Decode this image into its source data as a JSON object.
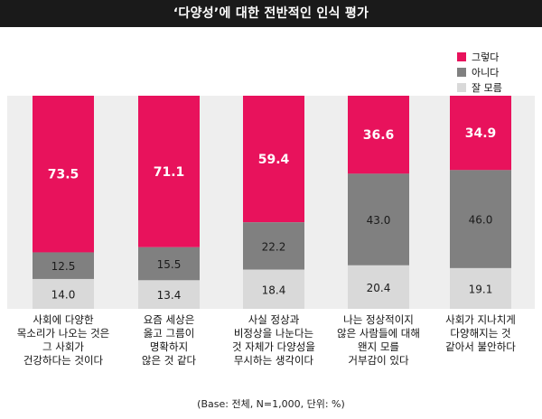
{
  "title": "‘다양성’에 대한 전반적인 인식 평가",
  "note": "(Base: 전체, N=1,000, 단위: %)",
  "colors": {
    "yes": "#e8125c",
    "no": "#808080",
    "unknown": "#d9d9d9",
    "band": "#eeeeee"
  },
  "chart_data": {
    "type": "bar",
    "stacked": true,
    "orientation": "vertical",
    "categories": [
      "사회에 다양한\n목소리가 나오는 것은\n그 사회가\n건강하다는 것이다",
      "요즘 세상은\n옳고 그름이\n명확하지\n않은 것 같다",
      "사실 정상과\n비정상을 나눈다는\n것 자체가 다양성을\n무시하는 생각이다",
      "나는 정상적이지\n않은 사람들에 대해\n왠지 모를\n거부감이 있다",
      "사회가 지나치게\n다양해지는 것\n같아서 불안하다"
    ],
    "series": [
      {
        "name": "그렇다",
        "values": [
          73.5,
          71.1,
          59.4,
          36.6,
          34.9
        ],
        "labels": [
          "73.5",
          "71.1",
          "59.4",
          "36.6",
          "34.9"
        ]
      },
      {
        "name": "아니다",
        "values": [
          12.5,
          15.5,
          22.2,
          43.0,
          46.0
        ],
        "labels": [
          "12.5",
          "15.5",
          "22.2",
          "43.0",
          "46.0"
        ]
      },
      {
        "name": "잘 모름",
        "values": [
          14.0,
          13.4,
          18.4,
          20.4,
          19.1
        ],
        "labels": [
          "14.0",
          "13.4",
          "18.4",
          "20.4",
          "19.1"
        ]
      }
    ],
    "ylim": [
      0,
      100
    ],
    "legend_position": "top-right"
  }
}
